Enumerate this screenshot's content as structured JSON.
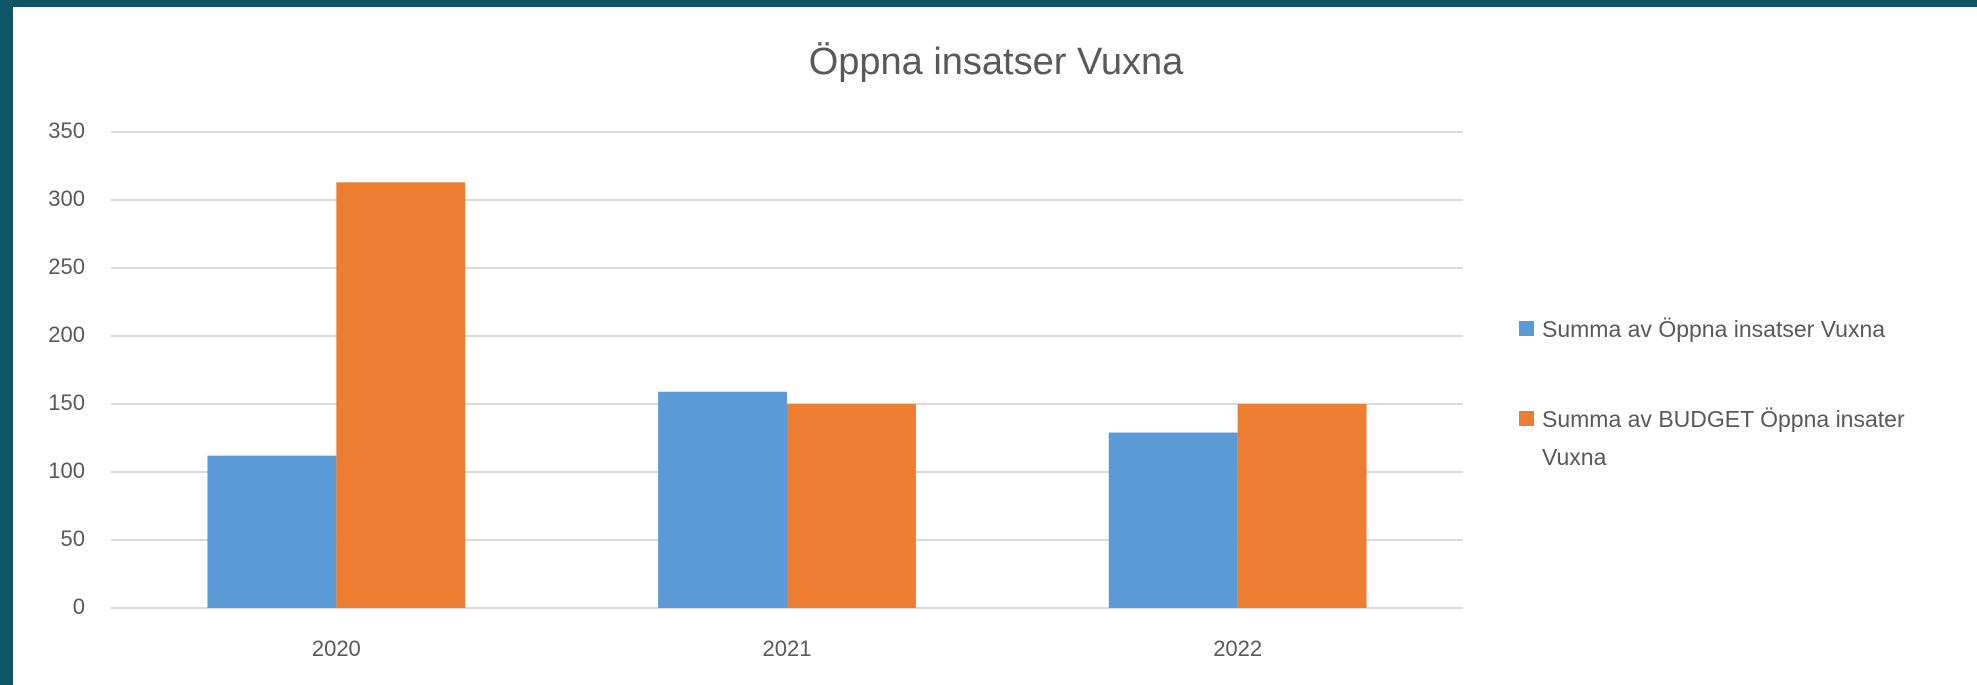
{
  "chart_data": {
    "type": "bar",
    "title": "Öppna insatser Vuxna",
    "categories": [
      "2020",
      "2021",
      "2022"
    ],
    "series": [
      {
        "name": "Summa av Öppna insatser Vuxna",
        "color": "#5b9bd5",
        "values": [
          112,
          159,
          129
        ]
      },
      {
        "name": "Summa av BUDGET Öppna insater Vuxna",
        "color": "#ed7d31",
        "values": [
          313,
          150,
          150
        ]
      }
    ],
    "ylim": [
      0,
      350
    ],
    "yticks": [
      0,
      50,
      100,
      150,
      200,
      250,
      300,
      350
    ],
    "grid": true,
    "legend": "right"
  }
}
